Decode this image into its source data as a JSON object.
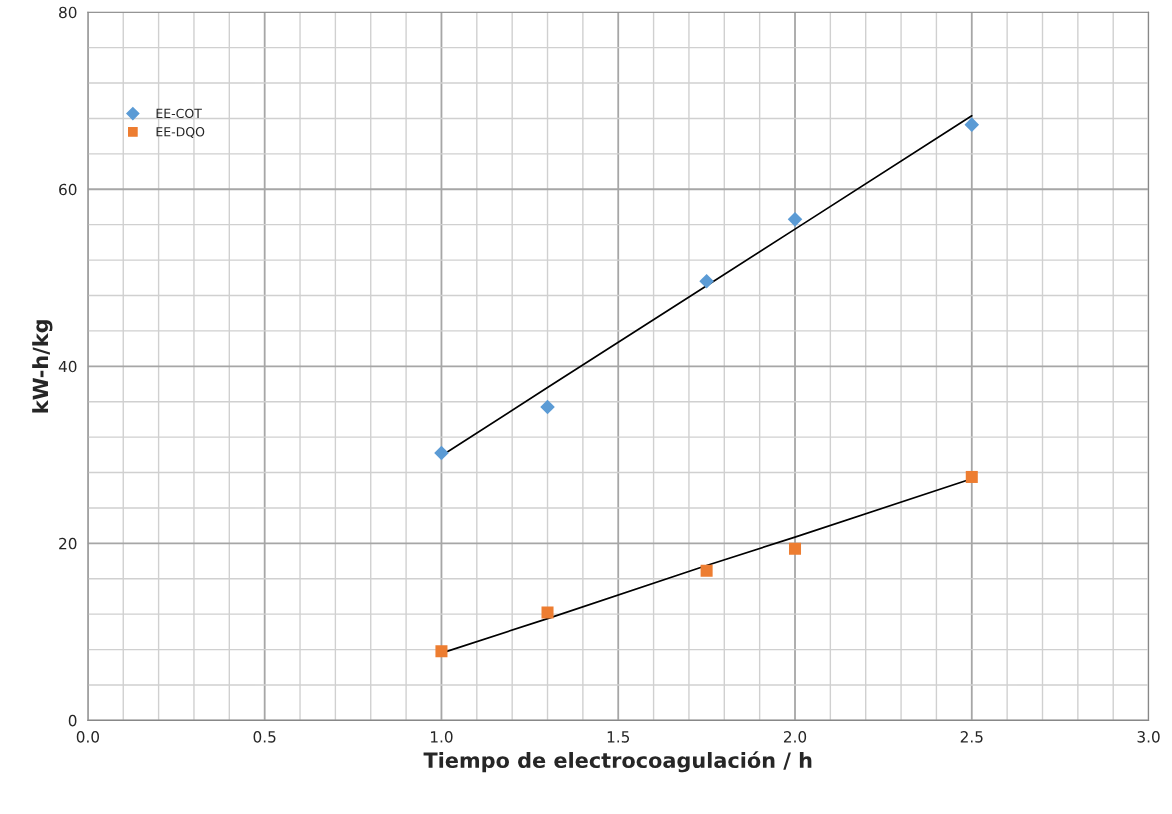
{
  "chart_data": {
    "type": "scatter",
    "xlabel": "Tiempo de electrocoagulación / h",
    "ylabel": "kW-h/kg",
    "x": [
      1.0,
      1.3,
      1.75,
      2.0,
      2.5
    ],
    "series": [
      {
        "name": "EE-COT",
        "color": "#5b9bd5",
        "marker": "diamond",
        "values": [
          30.2,
          35.4,
          49.6,
          56.6,
          67.3
        ]
      },
      {
        "name": "EE-DQO",
        "color": "#ed7d31",
        "marker": "square",
        "values": [
          7.8,
          12.2,
          16.9,
          19.4,
          27.5
        ]
      },
      {
        "type": "line",
        "color": "#000000",
        "values": [
          29.9,
          37.6,
          49.1,
          55.5,
          68.3
        ]
      },
      {
        "type": "line",
        "color": "#000000",
        "values": [
          7.6,
          11.5,
          17.5,
          20.7,
          27.3
        ]
      }
    ],
    "xlim": [
      0,
      3
    ],
    "xticks": [
      {
        "value": 0,
        "label": "0.0"
      },
      {
        "value": 0.5,
        "label": "0.5"
      },
      {
        "value": 1,
        "label": "1.0"
      },
      {
        "value": 1.5,
        "label": "1.5"
      },
      {
        "value": 2,
        "label": "2.0"
      },
      {
        "value": 2.5,
        "label": "2.5"
      },
      {
        "value": 3,
        "label": "3.0"
      }
    ],
    "ylim": [
      0,
      80
    ],
    "yticks": [
      0,
      20,
      40,
      60,
      80
    ],
    "grid": true,
    "legend": "top left"
  }
}
